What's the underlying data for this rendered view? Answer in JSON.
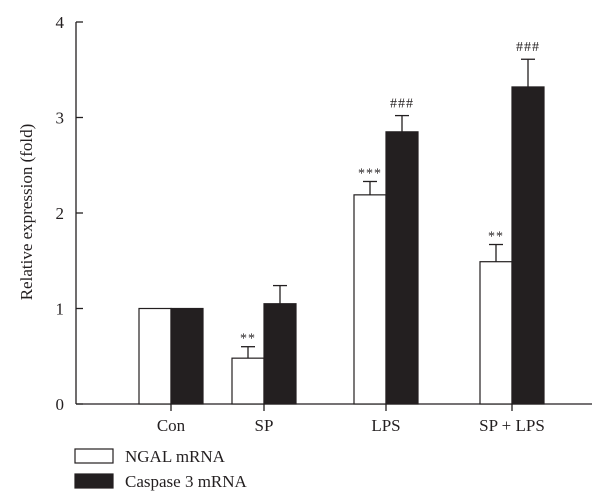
{
  "chart_data": {
    "type": "bar",
    "ylabel": "Relative expression (fold)",
    "ylim": [
      0,
      4
    ],
    "yticks": [
      "0",
      "1",
      "2",
      "3",
      "4"
    ],
    "categories": [
      "Con",
      "SP",
      "LPS",
      "SP + LPS"
    ],
    "series": [
      {
        "name": "NGAL mRNA",
        "color": "#ffffff",
        "values": [
          1.0,
          0.48,
          2.19,
          1.49
        ],
        "errors": [
          0,
          0.12,
          0.14,
          0.18
        ],
        "annotations": [
          "",
          "**",
          "***",
          "**"
        ]
      },
      {
        "name": "Caspase 3 mRNA",
        "color": "#231f20",
        "values": [
          1.0,
          1.05,
          2.85,
          3.32
        ],
        "errors": [
          0,
          0.19,
          0.17,
          0.29
        ],
        "annotations": [
          "",
          "",
          "###",
          "###"
        ]
      }
    ],
    "grid": false,
    "legend_position": "bottom-left"
  }
}
